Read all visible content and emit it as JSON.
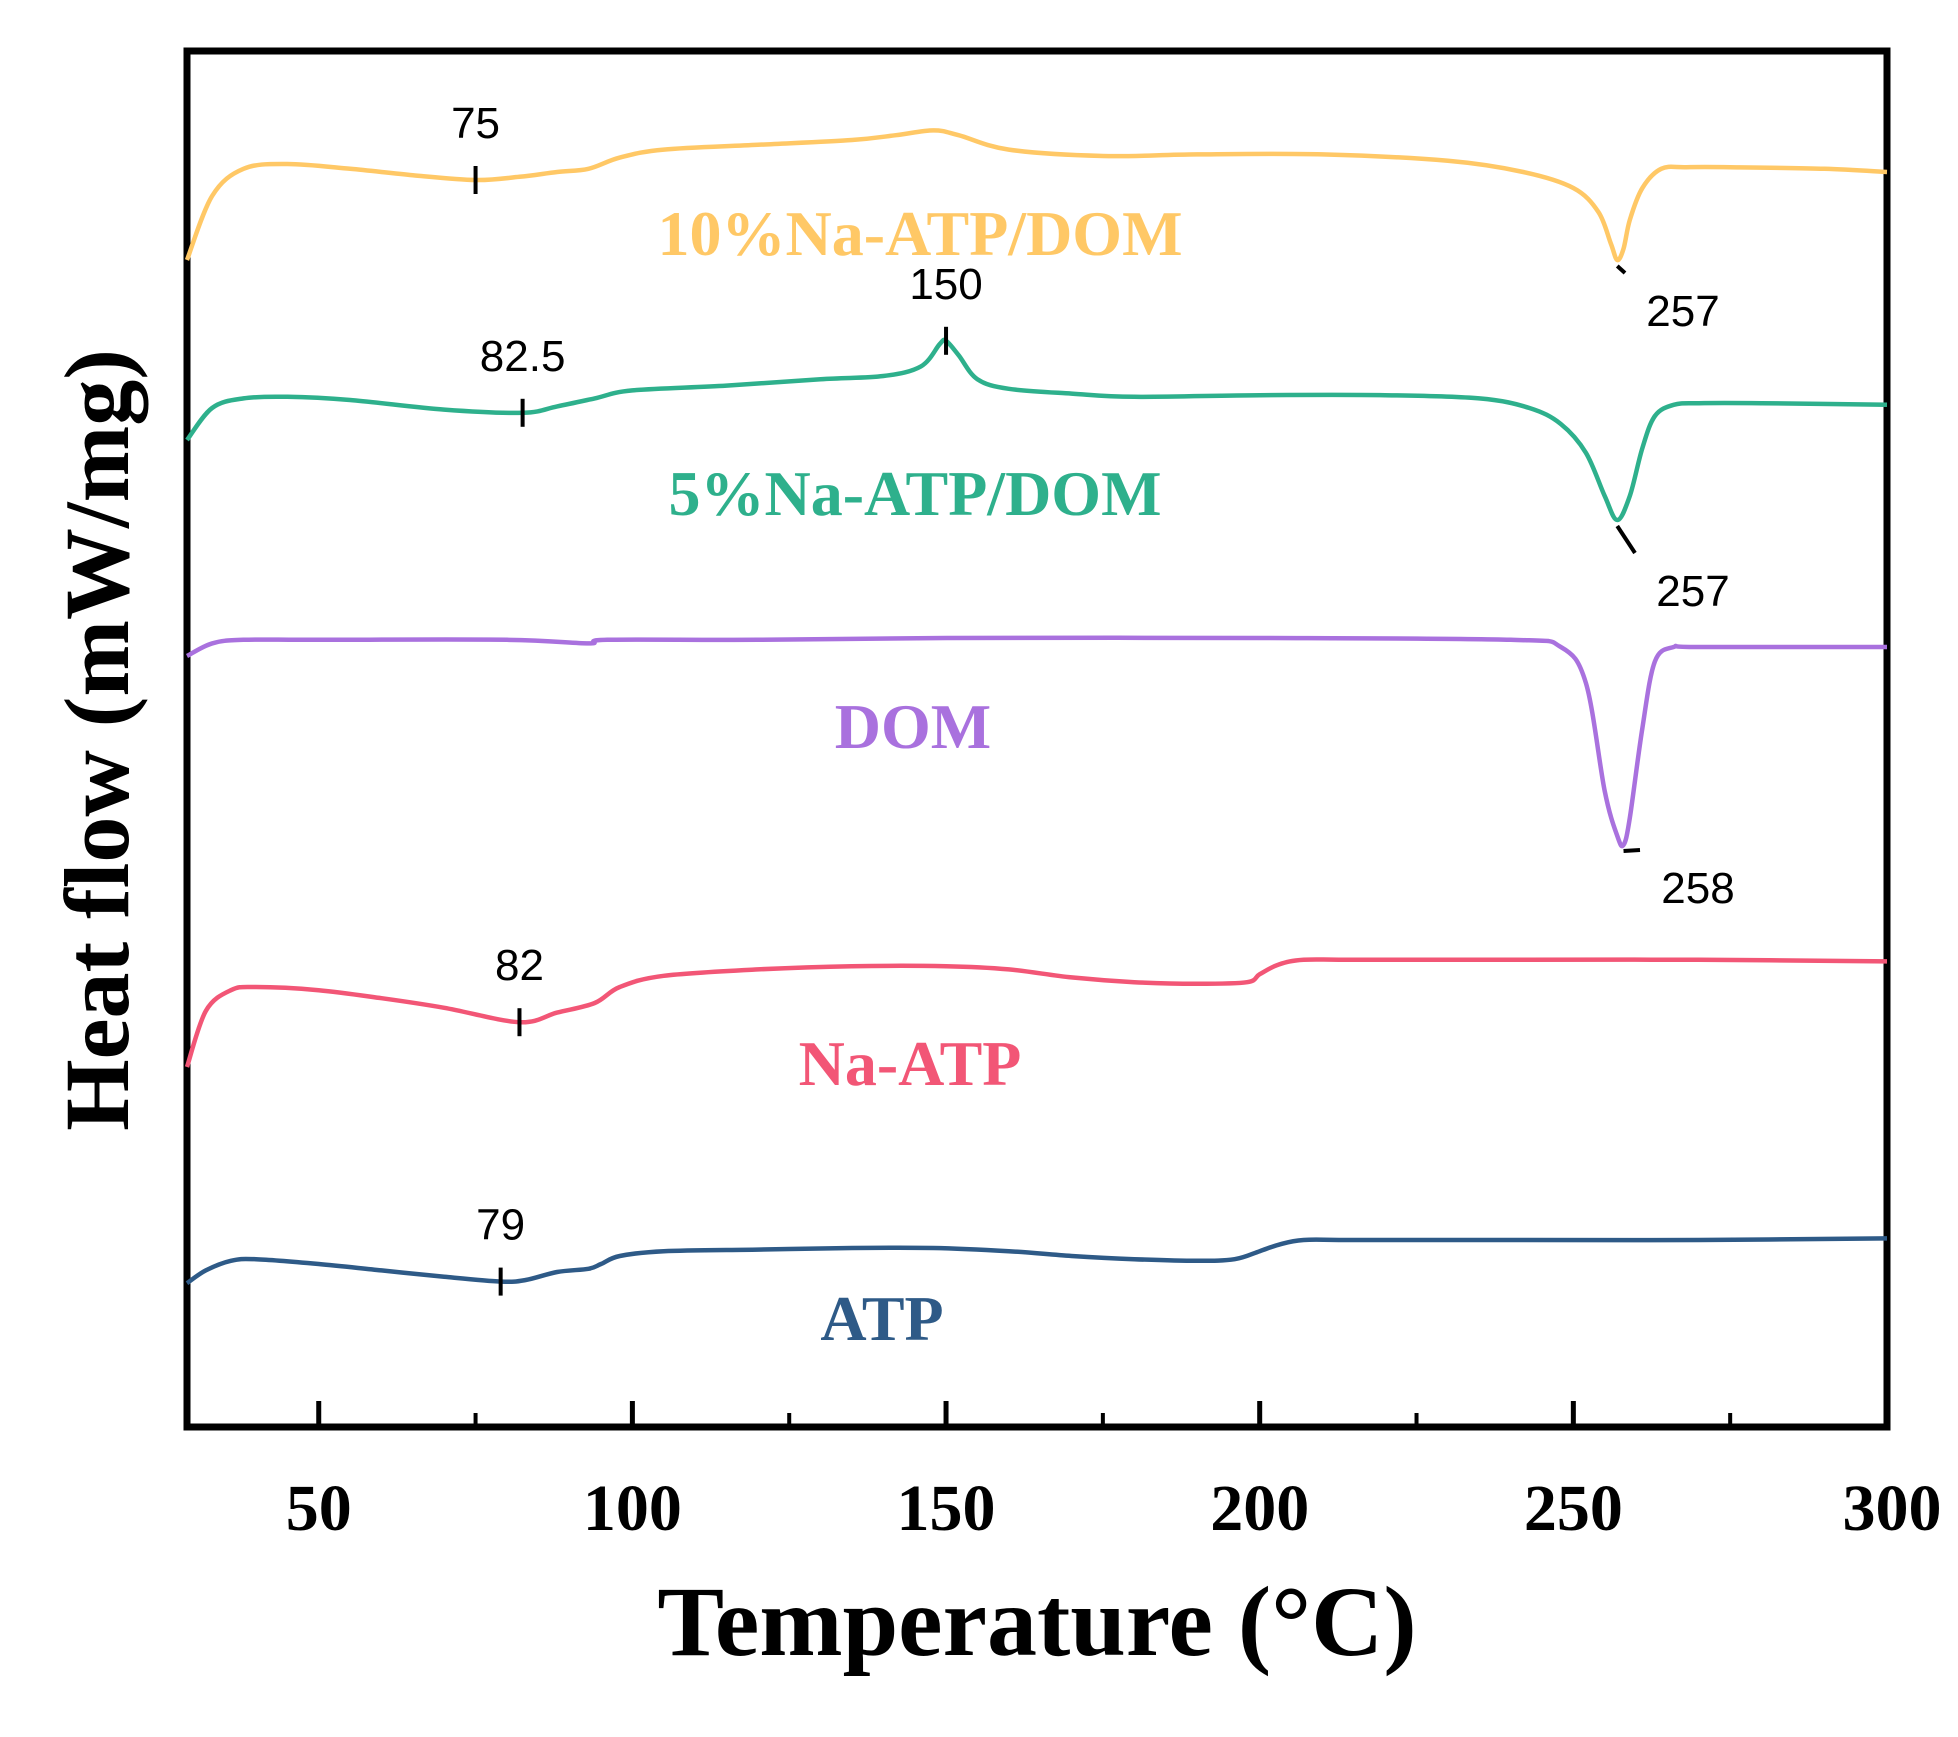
{
  "chart_data": {
    "type": "line",
    "xlabel": "Temperature (°C)",
    "ylabel": "Heat flow (mW/mg)",
    "xlim": [
      29,
      300
    ],
    "xticks": [
      50,
      100,
      150,
      200,
      250,
      300
    ],
    "xticks_minor": [
      75,
      125,
      175,
      225,
      275
    ],
    "yticks": [],
    "grid": false,
    "legend": "none (series labelled inline)",
    "series": [
      {
        "name": "10%Na-ATP/DOM",
        "color": "#FFC866",
        "x": [
          29,
          33,
          38,
          45,
          55,
          65,
          75,
          82,
          88,
          93,
          98,
          105,
          120,
          135,
          142,
          148,
          152,
          160,
          175,
          190,
          210,
          230,
          242,
          250,
          254,
          256,
          257,
          258,
          259,
          261,
          264,
          268,
          275,
          290,
          300
        ],
        "y": [
          -0.55,
          -0.15,
          0.02,
          0.05,
          0.02,
          -0.02,
          -0.05,
          -0.03,
          0.0,
          0.02,
          0.09,
          0.14,
          0.17,
          0.2,
          0.23,
          0.26,
          0.23,
          0.14,
          0.1,
          0.11,
          0.11,
          0.07,
          0.0,
          -0.1,
          -0.25,
          -0.45,
          -0.55,
          -0.48,
          -0.3,
          -0.1,
          0.02,
          0.03,
          0.03,
          0.02,
          0.0
        ],
        "annotations": [
          {
            "x": 75,
            "label": "75"
          },
          {
            "x": 257,
            "label": "257"
          }
        ]
      },
      {
        "name": "5%Na-ATP/DOM",
        "color": "#2EB08C",
        "x": [
          29,
          33,
          38,
          45,
          55,
          70,
          82.5,
          88,
          94,
          100,
          115,
          130,
          140,
          146,
          149,
          150,
          152,
          155,
          160,
          170,
          180,
          200,
          220,
          235,
          243,
          248,
          252,
          255,
          257,
          259,
          261,
          263,
          266,
          270,
          280,
          300
        ],
        "y": [
          -0.2,
          0.0,
          0.06,
          0.07,
          0.05,
          -0.01,
          -0.03,
          0.01,
          0.06,
          0.11,
          0.14,
          0.18,
          0.2,
          0.26,
          0.4,
          0.42,
          0.33,
          0.18,
          0.12,
          0.09,
          0.07,
          0.08,
          0.08,
          0.06,
          0.0,
          -0.1,
          -0.28,
          -0.55,
          -0.7,
          -0.55,
          -0.25,
          -0.05,
          0.02,
          0.03,
          0.03,
          0.02
        ],
        "annotations": [
          {
            "x": 82.5,
            "label": "82.5"
          },
          {
            "x": 150,
            "label": "150"
          },
          {
            "x": 257,
            "label": "257"
          }
        ]
      },
      {
        "name": "DOM",
        "color": "#A971DE",
        "x": [
          29,
          33,
          38,
          50,
          80,
          93,
          96,
          120,
          150,
          200,
          240,
          248,
          252,
          255,
          257,
          258,
          259,
          261,
          263,
          266,
          270,
          300
        ],
        "y": [
          -0.05,
          0.02,
          0.04,
          0.04,
          0.04,
          0.02,
          0.04,
          0.04,
          0.05,
          0.05,
          0.04,
          0.0,
          -0.2,
          -0.8,
          -1.05,
          -1.1,
          -0.95,
          -0.45,
          -0.08,
          0.0,
          0.0,
          0.0
        ],
        "annotations": [
          {
            "x": 258,
            "label": "258"
          }
        ]
      },
      {
        "name": "Na-ATP",
        "color": "#F25676",
        "x": [
          29,
          32,
          36,
          40,
          50,
          60,
          70,
          82,
          88,
          94,
          98,
          105,
          120,
          135,
          150,
          160,
          170,
          180,
          190,
          198,
          200,
          203,
          207,
          215,
          240,
          270,
          300
        ],
        "y": [
          -0.4,
          -0.05,
          0.08,
          0.1,
          0.08,
          0.03,
          -0.03,
          -0.12,
          -0.06,
          0.0,
          0.1,
          0.17,
          0.21,
          0.23,
          0.23,
          0.21,
          0.16,
          0.13,
          0.12,
          0.13,
          0.18,
          0.24,
          0.27,
          0.27,
          0.27,
          0.27,
          0.26
        ],
        "annotations": [
          {
            "x": 82,
            "label": "82"
          }
        ]
      },
      {
        "name": "ATP",
        "color": "#2E5A87",
        "x": [
          29,
          32,
          36,
          40,
          50,
          60,
          70,
          79,
          83,
          88,
          93,
          95,
          98,
          105,
          120,
          135,
          148,
          160,
          170,
          180,
          190,
          196,
          200,
          203,
          207,
          215,
          240,
          270,
          300
        ],
        "y": [
          -0.12,
          -0.04,
          0.02,
          0.03,
          0.0,
          -0.04,
          -0.08,
          -0.11,
          -0.1,
          -0.05,
          -0.03,
          0.0,
          0.05,
          0.08,
          0.09,
          0.1,
          0.1,
          0.08,
          0.05,
          0.03,
          0.02,
          0.03,
          0.08,
          0.12,
          0.15,
          0.15,
          0.15,
          0.15,
          0.16
        ],
        "annotations": [
          {
            "x": 79,
            "label": "79"
          }
        ]
      }
    ]
  }
}
